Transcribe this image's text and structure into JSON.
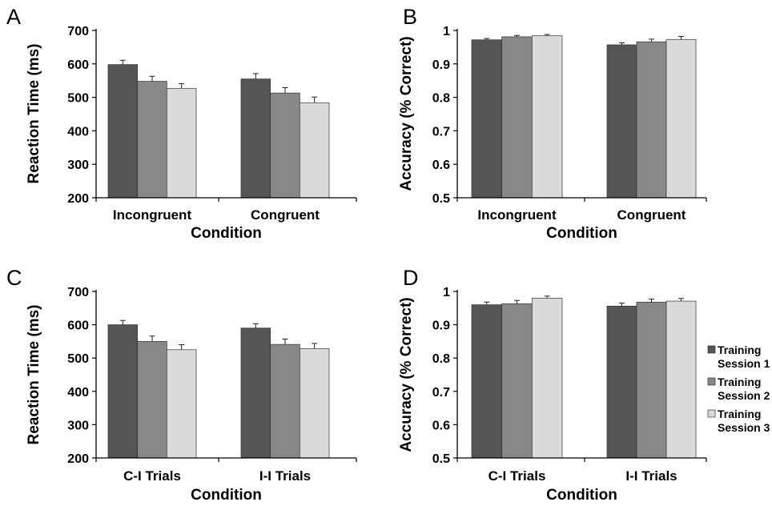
{
  "series_colors": [
    "#555555",
    "#888888",
    "#dadada"
  ],
  "legend": {
    "entries": [
      [
        "Training",
        "Session 1"
      ],
      [
        "Training",
        "Session 2"
      ],
      [
        "Training",
        "Session 3"
      ]
    ]
  },
  "chart_data": [
    {
      "panel": "A",
      "type": "bar",
      "categories": [
        "Incongruent",
        "Congruent"
      ],
      "xlabel": "Condition",
      "ylabel": "Reaction Time (ms)",
      "ylim": [
        200,
        700
      ],
      "yticks": [
        200,
        300,
        400,
        500,
        600,
        700
      ],
      "series": [
        {
          "name": "Training Session 1",
          "values": [
            598,
            555
          ],
          "errors": [
            13,
            16
          ]
        },
        {
          "name": "Training Session 2",
          "values": [
            548,
            513
          ],
          "errors": [
            15,
            16
          ]
        },
        {
          "name": "Training Session 3",
          "values": [
            527,
            484
          ],
          "errors": [
            14,
            17
          ]
        }
      ]
    },
    {
      "panel": "B",
      "type": "bar",
      "categories": [
        "Incongruent",
        "Congruent"
      ],
      "xlabel": "Condition",
      "ylabel": "Accuracy (% Correct)",
      "ylim": [
        0.5,
        1
      ],
      "yticks": [
        0.5,
        0.6,
        0.7,
        0.8,
        0.9,
        1
      ],
      "series": [
        {
          "name": "Training Session 1",
          "values": [
            0.972,
            0.957
          ],
          "errors": [
            0.004,
            0.006
          ]
        },
        {
          "name": "Training Session 2",
          "values": [
            0.981,
            0.966
          ],
          "errors": [
            0.004,
            0.008
          ]
        },
        {
          "name": "Training Session 3",
          "values": [
            0.984,
            0.973
          ],
          "errors": [
            0.004,
            0.009
          ]
        }
      ]
    },
    {
      "panel": "C",
      "type": "bar",
      "categories": [
        "C-I Trials",
        "I-I Trials"
      ],
      "xlabel": "Condition",
      "ylabel": "Reaction Time (ms)",
      "ylim": [
        200,
        700
      ],
      "yticks": [
        200,
        300,
        400,
        500,
        600,
        700
      ],
      "series": [
        {
          "name": "Training Session 1",
          "values": [
            600,
            590
          ],
          "errors": [
            13,
            13
          ]
        },
        {
          "name": "Training Session 2",
          "values": [
            550,
            541
          ],
          "errors": [
            16,
            16
          ]
        },
        {
          "name": "Training Session 3",
          "values": [
            525,
            528
          ],
          "errors": [
            15,
            16
          ]
        }
      ]
    },
    {
      "panel": "D",
      "type": "bar",
      "categories": [
        "C-I Trials",
        "I-I Trials"
      ],
      "xlabel": "Condition",
      "ylabel": "Accuracy (% Correct)",
      "ylim": [
        0.5,
        1
      ],
      "yticks": [
        0.5,
        0.6,
        0.7,
        0.8,
        0.9,
        1
      ],
      "legend_position": "right",
      "series": [
        {
          "name": "Training Session 1",
          "values": [
            0.96,
            0.956
          ],
          "errors": [
            0.008,
            0.009
          ]
        },
        {
          "name": "Training Session 2",
          "values": [
            0.963,
            0.968
          ],
          "errors": [
            0.01,
            0.009
          ]
        },
        {
          "name": "Training Session 3",
          "values": [
            0.98,
            0.971
          ],
          "errors": [
            0.006,
            0.008
          ]
        }
      ]
    }
  ]
}
